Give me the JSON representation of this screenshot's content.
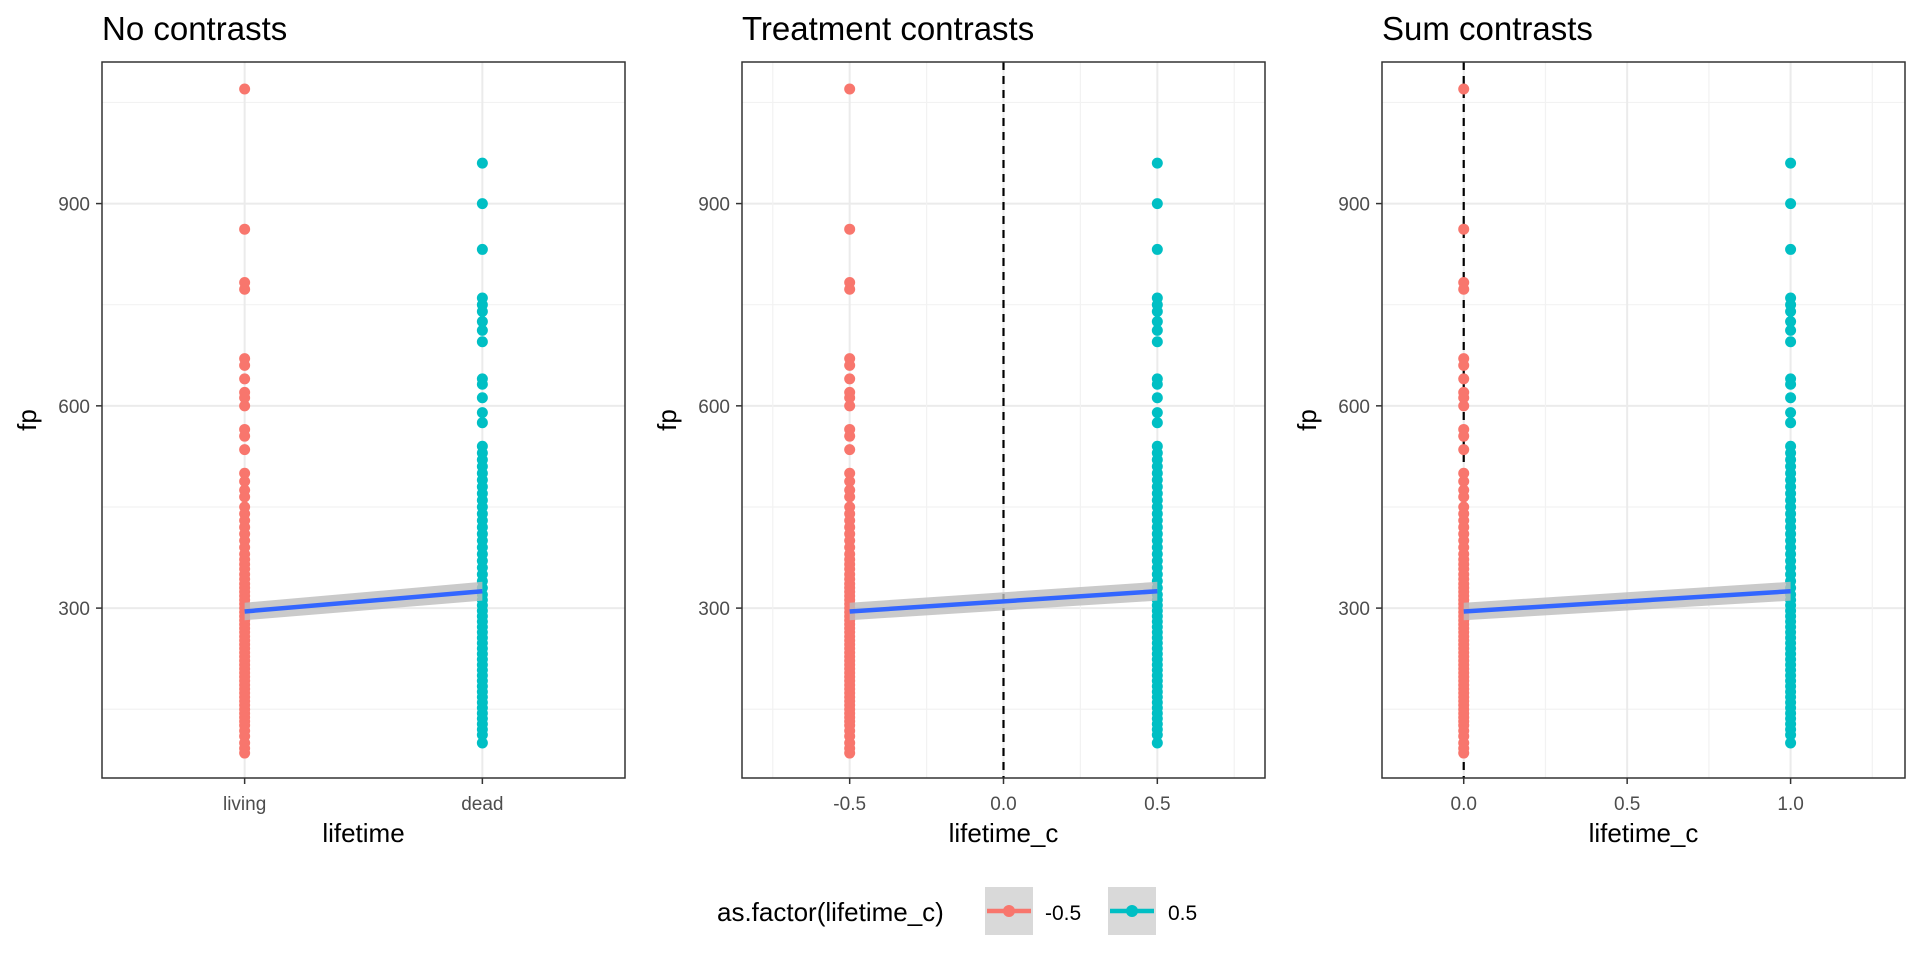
{
  "colors": {
    "red": "#F8766D",
    "teal": "#00BFC4",
    "line": "#3366FF",
    "ribbon": "#BDBDBD",
    "grid_major": "#EBEBEB",
    "grid_minor": "#F2F2F2",
    "panel_border": "#333333",
    "vline": "#000000"
  },
  "legend": {
    "title": "as.factor(lifetime_c)",
    "entries": [
      {
        "label": "-0.5",
        "color": "#F8766D"
      },
      {
        "label": "0.5",
        "color": "#00BFC4"
      }
    ],
    "position": "bottom"
  },
  "chart_data": [
    {
      "type": "scatter",
      "title": "No contrasts",
      "xlabel": "lifetime",
      "ylabel": "fp",
      "x_categories": [
        "living",
        "dead"
      ],
      "xlim": [
        0.4,
        2.6
      ],
      "ylim": [
        48,
        1110
      ],
      "y_ticks": [
        300,
        600,
        900
      ],
      "x_ticks": [
        "living",
        "dead"
      ],
      "vline": null,
      "fit": {
        "x": [
          1,
          2
        ],
        "y": [
          295,
          325
        ],
        "se_low": [
          282,
          311
        ],
        "se_high": [
          308,
          339
        ]
      }
    },
    {
      "type": "scatter",
      "title": "Treatment contrasts",
      "xlabel": "lifetime_c",
      "ylabel": "fp",
      "x_categories": null,
      "xlim": [
        -0.85,
        0.85
      ],
      "ylim": [
        48,
        1110
      ],
      "y_ticks": [
        300,
        600,
        900
      ],
      "x_ticks": [
        "-0.5",
        "0.0",
        "0.5"
      ],
      "x_tick_values": [
        -0.5,
        0.0,
        0.5
      ],
      "vline": 0,
      "fit": {
        "x": [
          -0.5,
          0.5
        ],
        "y": [
          295,
          325
        ],
        "se_low": [
          282,
          311
        ],
        "se_high": [
          308,
          339
        ]
      }
    },
    {
      "type": "scatter",
      "title": "Sum contrasts",
      "xlabel": "lifetime_c",
      "ylabel": "fp",
      "x_categories": null,
      "xlim": [
        -0.25,
        1.35
      ],
      "ylim": [
        48,
        1110
      ],
      "y_ticks": [
        300,
        600,
        900
      ],
      "x_ticks": [
        "0.0",
        "0.5",
        "1.0"
      ],
      "x_tick_values": [
        0.0,
        0.5,
        1.0
      ],
      "vline": 0,
      "fit": {
        "x": [
          0,
          1
        ],
        "y": [
          295,
          325
        ],
        "se_low": [
          282,
          311
        ],
        "se_high": [
          308,
          339
        ]
      }
    }
  ],
  "points": {
    "living": [
      1070,
      862,
      783,
      773,
      670,
      660,
      640,
      620,
      612,
      600,
      565,
      555,
      535,
      500,
      488,
      475,
      465,
      450,
      440,
      430,
      420,
      410,
      400,
      390,
      380,
      372,
      365,
      358,
      350,
      343,
      336,
      330,
      324,
      318,
      312,
      306,
      300,
      294,
      288,
      282,
      276,
      270,
      264,
      258,
      252,
      246,
      240,
      234,
      228,
      222,
      216,
      210,
      204,
      198,
      192,
      186,
      180,
      174,
      168,
      162,
      156,
      150,
      144,
      138,
      132,
      126,
      118,
      110,
      100,
      92,
      85
    ],
    "dead": [
      960,
      900,
      832,
      760,
      750,
      740,
      725,
      712,
      695,
      640,
      632,
      612,
      590,
      575,
      540,
      530,
      520,
      510,
      500,
      490,
      480,
      470,
      460,
      450,
      440,
      430,
      420,
      410,
      400,
      390,
      380,
      370,
      360,
      350,
      340,
      330,
      320,
      312,
      304,
      296,
      288,
      280,
      272,
      264,
      256,
      248,
      240,
      232,
      224,
      216,
      208,
      200,
      192,
      184,
      176,
      168,
      160,
      152,
      144,
      136,
      128,
      120,
      112,
      100
    ]
  }
}
